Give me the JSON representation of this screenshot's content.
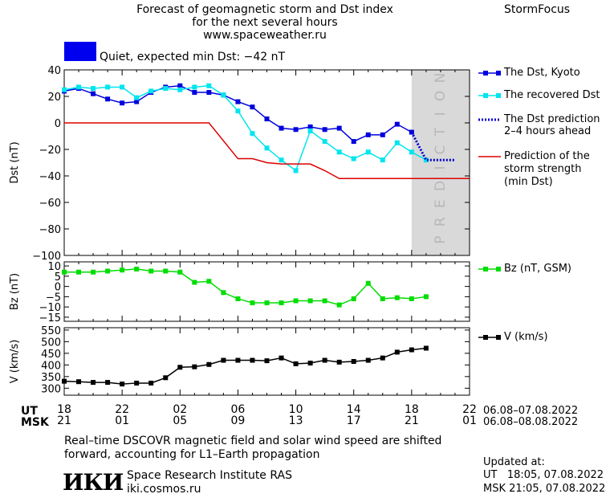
{
  "header": {
    "title_line1": "Forecast of geomagnetic storm and Dst index",
    "title_line2": "for the next several hours",
    "url": "www.spaceweather.ru",
    "brand": "StormFocus"
  },
  "status": {
    "label": "Quiet, expected min Dst: −42 nT",
    "color": "#0000ee"
  },
  "prediction_band_label": "PREDICTION",
  "time_axis": {
    "ut_label": "UT",
    "msk_label": "MSK",
    "ut_ticks": [
      "18",
      "22",
      "02",
      "06",
      "10",
      "14",
      "18",
      "22"
    ],
    "msk_ticks": [
      "21",
      "01",
      "05",
      "09",
      "13",
      "17",
      "21",
      "01"
    ],
    "ut_dates": "06.08–07.08.2022",
    "msk_dates": "06.08–08.08.2022"
  },
  "footer": {
    "note_line1": "Real–time DSCOVR magnetic field and solar wind speed are shifted",
    "note_line2": "forward, accounting for L1–Earth propagation",
    "institute": "Space Research Institute RAS",
    "site": "iki.cosmos.ru",
    "logo_text": "ИКИ",
    "updated_label": "Updated at:",
    "updated_ut": "UT   18:05, 07.08.2022",
    "updated_msk": "MSK 21:05, 07.08.2022"
  },
  "chart_data": [
    {
      "type": "line",
      "ylabel": "Dst (nT)",
      "ylim": [
        -100,
        40
      ],
      "yticks": [
        40,
        20,
        0,
        -20,
        -40,
        -60,
        -80,
        -100
      ],
      "x_unit": "hours since 18 UT 06.08",
      "xlim": [
        0,
        28
      ],
      "prediction_region": [
        24,
        28
      ],
      "series": [
        {
          "name": "The Dst, Kyoto",
          "color": "#0000dd",
          "style": "solid",
          "marker": "square",
          "x": [
            0,
            1,
            2,
            3,
            4,
            5,
            6,
            7,
            8,
            9,
            10,
            11,
            12,
            13,
            14,
            15,
            16,
            17,
            18,
            19,
            20,
            21,
            22,
            23,
            24
          ],
          "values": [
            24,
            26,
            22,
            18,
            15,
            16,
            23,
            27,
            28,
            23,
            23,
            21,
            16,
            12,
            3,
            -4,
            -5,
            -3,
            -5,
            -4,
            -14,
            -9,
            -9,
            -1,
            -7
          ]
        },
        {
          "name": "The recovered Dst",
          "color": "#00e5ee",
          "style": "solid",
          "marker": "square",
          "x": [
            0,
            1,
            2,
            3,
            4,
            5,
            6,
            7,
            8,
            9,
            10,
            11,
            12,
            13,
            14,
            15,
            16,
            17,
            18,
            19,
            20,
            21,
            22,
            23,
            24,
            25
          ],
          "values": [
            25,
            27,
            26,
            27,
            27,
            19,
            24,
            26,
            25,
            27,
            28,
            21,
            9,
            -8,
            -19,
            -28,
            -36,
            -6,
            -14,
            -22,
            -27,
            -22,
            -28,
            -15,
            -22,
            -28
          ]
        },
        {
          "name": "The Dst prediction\n2–4 hours ahead",
          "color": "#0000cc",
          "style": "dotted",
          "marker": "none",
          "x": [
            24,
            25,
            26,
            27
          ],
          "values": [
            -7,
            -28,
            -28,
            -28
          ]
        },
        {
          "name": "Prediction of the\nstorm strength\n(min Dst)",
          "color": "#dd0000",
          "style": "solid",
          "marker": "none",
          "x": [
            0,
            10,
            12,
            13,
            14,
            15,
            16,
            17,
            18,
            19,
            28
          ],
          "values": [
            0,
            0,
            -27,
            -27,
            -30,
            -31,
            -31,
            -31,
            -36,
            -42,
            -42
          ]
        }
      ]
    },
    {
      "type": "line",
      "ylabel": "Bz (nT)",
      "ylim": [
        -17,
        12
      ],
      "yticks": [
        10,
        5,
        0,
        -5,
        -10,
        -15
      ],
      "x_unit": "hours since 18 UT 06.08",
      "xlim": [
        0,
        28
      ],
      "series": [
        {
          "name": "Bz (nT, GSM)",
          "color": "#00dd00",
          "style": "solid",
          "marker": "square",
          "x": [
            0,
            1,
            2,
            3,
            4,
            5,
            6,
            7,
            8,
            9,
            10,
            11,
            12,
            13,
            14,
            15,
            16,
            17,
            18,
            19,
            20,
            21,
            22,
            23,
            24,
            25
          ],
          "values": [
            7,
            7,
            7,
            7.5,
            8,
            8.5,
            7.5,
            7.5,
            7,
            2,
            2.5,
            -3,
            -6,
            -8,
            -8,
            -8,
            -7,
            -7,
            -7,
            -9,
            -6,
            1.5,
            -6,
            -5.5,
            -6,
            -5
          ]
        }
      ]
    },
    {
      "type": "line",
      "ylabel": "V (km/s)",
      "ylim": [
        270,
        560
      ],
      "yticks": [
        550,
        500,
        450,
        400,
        350,
        300
      ],
      "x_unit": "hours since 18 UT 06.08",
      "xlim": [
        0,
        28
      ],
      "series": [
        {
          "name": "V (km/s)",
          "color": "#000000",
          "style": "solid",
          "marker": "square",
          "x": [
            0,
            1,
            2,
            3,
            4,
            5,
            6,
            7,
            8,
            9,
            10,
            11,
            12,
            13,
            14,
            15,
            16,
            17,
            18,
            19,
            20,
            21,
            22,
            23,
            24,
            25
          ],
          "values": [
            330,
            328,
            325,
            325,
            318,
            322,
            322,
            345,
            390,
            392,
            402,
            420,
            420,
            420,
            418,
            430,
            405,
            408,
            420,
            412,
            415,
            420,
            430,
            455,
            465,
            472
          ]
        }
      ]
    }
  ]
}
